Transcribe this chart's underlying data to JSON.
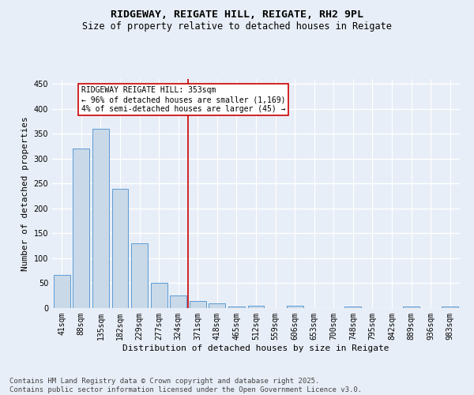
{
  "title1": "RIDGEWAY, REIGATE HILL, REIGATE, RH2 9PL",
  "title2": "Size of property relative to detached houses in Reigate",
  "xlabel": "Distribution of detached houses by size in Reigate",
  "ylabel": "Number of detached properties",
  "bar_labels": [
    "41sqm",
    "88sqm",
    "135sqm",
    "182sqm",
    "229sqm",
    "277sqm",
    "324sqm",
    "371sqm",
    "418sqm",
    "465sqm",
    "512sqm",
    "559sqm",
    "606sqm",
    "653sqm",
    "700sqm",
    "748sqm",
    "795sqm",
    "842sqm",
    "889sqm",
    "936sqm",
    "983sqm"
  ],
  "bar_values": [
    67,
    320,
    360,
    240,
    130,
    50,
    25,
    14,
    10,
    3,
    4,
    0,
    4,
    0,
    0,
    3,
    0,
    0,
    3,
    0,
    3
  ],
  "bar_color": "#c9d9e8",
  "bar_edge_color": "#5b9bd5",
  "vline_x": 6.5,
  "vline_color": "#cc0000",
  "annotation_text": "RIDGEWAY REIGATE HILL: 353sqm\n← 96% of detached houses are smaller (1,169)\n4% of semi-detached houses are larger (45) →",
  "annotation_box_color": "#cc0000",
  "annotation_bg": "#ffffff",
  "ylim": [
    0,
    460
  ],
  "yticks": [
    0,
    50,
    100,
    150,
    200,
    250,
    300,
    350,
    400,
    450
  ],
  "footer1": "Contains HM Land Registry data © Crown copyright and database right 2025.",
  "footer2": "Contains public sector information licensed under the Open Government Licence v3.0.",
  "bg_color": "#e8eef7",
  "grid_color": "#ffffff",
  "title_fontsize": 9.5,
  "subtitle_fontsize": 8.5,
  "axis_label_fontsize": 8,
  "tick_fontsize": 7,
  "annotation_fontsize": 7,
  "footer_fontsize": 6.5
}
